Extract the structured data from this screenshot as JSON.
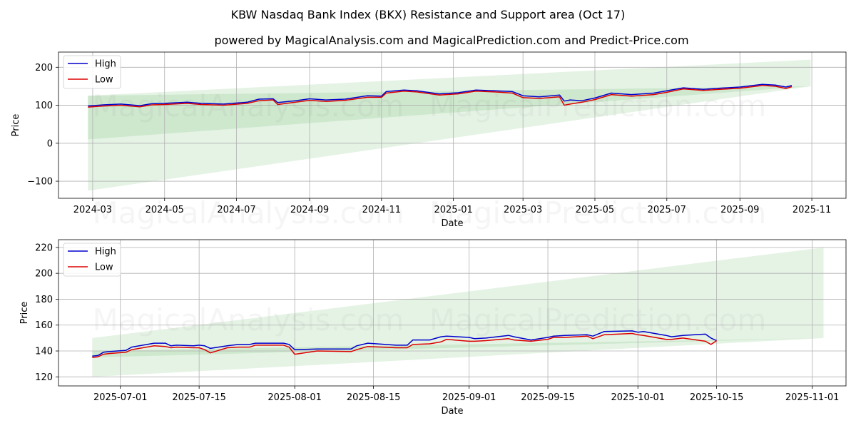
{
  "title": "KBW Nasdaq Bank Index (BKX) Resistance and Support area (Oct 17)",
  "subtitle": "powered by MagicalAnalysis.com and MagicalPrediction.com and Predict-Price.com",
  "watermarks": [
    "MagicalAnalysis.com",
    "MagicalPrediction.com"
  ],
  "colors": {
    "high": "#0000cc",
    "low": "#dd0000",
    "band": "#2ca02c",
    "grid": "#b0b0b0"
  },
  "chart_data": [
    {
      "type": "line",
      "title": "",
      "xlabel": "Date",
      "ylabel": "Price",
      "xlim": [
        "2024-02-01",
        "2025-11-30"
      ],
      "ylim": [
        -145,
        240
      ],
      "yticks": [
        -100,
        0,
        100,
        200
      ],
      "ytick_labels": [
        "−100",
        "0",
        "100",
        "200"
      ],
      "xticks": [
        "2024-03-01",
        "2024-05-01",
        "2024-07-01",
        "2024-09-01",
        "2024-11-01",
        "2025-01-01",
        "2025-03-01",
        "2025-05-01",
        "2025-07-01",
        "2025-09-01",
        "2025-11-01"
      ],
      "xtick_labels": [
        "2024-03",
        "2024-05",
        "2024-07",
        "2024-09",
        "2024-11",
        "2025-01",
        "2025-03",
        "2025-05",
        "2025-07",
        "2025-09",
        "2025-11"
      ],
      "legend": {
        "position": "top-left",
        "entries": [
          "High",
          "Low"
        ]
      },
      "bands": [
        {
          "x": [
            "2024-02-26",
            "2025-10-31"
          ],
          "upper": [
            125,
            220
          ],
          "lower": [
            10,
            150
          ]
        },
        {
          "x": [
            "2024-02-26",
            "2025-10-31"
          ],
          "upper": [
            125,
            150
          ],
          "lower": [
            -125,
            150
          ]
        }
      ],
      "series": [
        {
          "name": "High",
          "x": [
            "2024-02-26",
            "2024-03-10",
            "2024-03-25",
            "2024-04-10",
            "2024-04-20",
            "2024-05-01",
            "2024-05-20",
            "2024-06-01",
            "2024-06-20",
            "2024-07-10",
            "2024-07-20",
            "2024-08-01",
            "2024-08-05",
            "2024-08-20",
            "2024-09-01",
            "2024-09-15",
            "2024-10-01",
            "2024-10-20",
            "2024-11-01",
            "2024-11-05",
            "2024-11-20",
            "2024-12-01",
            "2024-12-20",
            "2025-01-05",
            "2025-01-20",
            "2025-02-05",
            "2025-02-20",
            "2025-03-01",
            "2025-03-15",
            "2025-04-01",
            "2025-04-05",
            "2025-04-10",
            "2025-04-20",
            "2025-05-01",
            "2025-05-15",
            "2025-06-01",
            "2025-06-20",
            "2025-07-01",
            "2025-07-15",
            "2025-08-01",
            "2025-08-15",
            "2025-09-01",
            "2025-09-20",
            "2025-10-01",
            "2025-10-10",
            "2025-10-15"
          ],
          "values": [
            98,
            101,
            103,
            99,
            104,
            105,
            108,
            105,
            103,
            108,
            116,
            117,
            107,
            112,
            117,
            114,
            116,
            125,
            124,
            136,
            140,
            138,
            130,
            133,
            140,
            138,
            136,
            125,
            122,
            127,
            111,
            114,
            112,
            119,
            132,
            128,
            132,
            138,
            146,
            142,
            145,
            148,
            155,
            153,
            148,
            152
          ]
        },
        {
          "name": "Low",
          "x": [
            "2024-02-26",
            "2024-03-10",
            "2024-03-25",
            "2024-04-10",
            "2024-04-20",
            "2024-05-01",
            "2024-05-20",
            "2024-06-01",
            "2024-06-20",
            "2024-07-10",
            "2024-07-20",
            "2024-08-01",
            "2024-08-05",
            "2024-08-20",
            "2024-09-01",
            "2024-09-15",
            "2024-10-01",
            "2024-10-20",
            "2024-11-01",
            "2024-11-05",
            "2024-11-20",
            "2024-12-01",
            "2024-12-20",
            "2025-01-05",
            "2025-01-20",
            "2025-02-05",
            "2025-02-20",
            "2025-03-01",
            "2025-03-15",
            "2025-04-01",
            "2025-04-05",
            "2025-04-10",
            "2025-04-20",
            "2025-05-01",
            "2025-05-15",
            "2025-06-01",
            "2025-06-20",
            "2025-07-01",
            "2025-07-15",
            "2025-08-01",
            "2025-08-15",
            "2025-09-01",
            "2025-09-20",
            "2025-10-01",
            "2025-10-10",
            "2025-10-15"
          ],
          "values": [
            95,
            98,
            100,
            96,
            101,
            102,
            105,
            102,
            100,
            105,
            112,
            114,
            102,
            108,
            113,
            110,
            113,
            121,
            121,
            132,
            137,
            135,
            127,
            130,
            137,
            135,
            132,
            120,
            118,
            122,
            100,
            103,
            108,
            115,
            128,
            124,
            128,
            134,
            143,
            139,
            142,
            145,
            152,
            150,
            144,
            149
          ]
        }
      ]
    },
    {
      "type": "line",
      "title": "",
      "xlabel": "Date",
      "ylabel": "Price",
      "xlim": [
        "2025-06-20",
        "2025-11-07"
      ],
      "ylim": [
        113,
        226
      ],
      "yticks": [
        120,
        140,
        160,
        180,
        200,
        220
      ],
      "ytick_labels": [
        "120",
        "140",
        "160",
        "180",
        "200",
        "220"
      ],
      "xticks": [
        "2025-07-01",
        "2025-07-15",
        "2025-08-01",
        "2025-08-15",
        "2025-09-01",
        "2025-09-15",
        "2025-10-01",
        "2025-10-15",
        "2025-11-01"
      ],
      "xtick_labels": [
        "2025-07-01",
        "2025-07-15",
        "2025-08-01",
        "2025-08-15",
        "2025-09-01",
        "2025-09-15",
        "2025-10-01",
        "2025-10-15",
        "2025-11-01"
      ],
      "legend": {
        "position": "top-left",
        "entries": [
          "High",
          "Low"
        ]
      },
      "bands": [
        {
          "x": [
            "2025-06-26",
            "2025-11-03"
          ],
          "upper": [
            150,
            220
          ],
          "lower": [
            135,
            150
          ]
        },
        {
          "x": [
            "2025-06-26",
            "2025-11-03"
          ],
          "upper": [
            140,
            150
          ],
          "lower": [
            120,
            150
          ]
        }
      ],
      "series": [
        {
          "name": "High",
          "x": [
            "2025-06-26",
            "2025-06-27",
            "2025-06-28",
            "2025-06-29",
            "2025-07-02",
            "2025-07-03",
            "2025-07-07",
            "2025-07-09",
            "2025-07-10",
            "2025-07-11",
            "2025-07-14",
            "2025-07-15",
            "2025-07-16",
            "2025-07-17",
            "2025-07-20",
            "2025-07-22",
            "2025-07-24",
            "2025-07-25",
            "2025-07-30",
            "2025-07-31",
            "2025-08-01",
            "2025-08-05",
            "2025-08-11",
            "2025-08-12",
            "2025-08-14",
            "2025-08-19",
            "2025-08-21",
            "2025-08-22",
            "2025-08-25",
            "2025-08-27",
            "2025-08-28",
            "2025-09-01",
            "2025-09-02",
            "2025-09-04",
            "2025-09-08",
            "2025-09-09",
            "2025-09-12",
            "2025-09-15",
            "2025-09-16",
            "2025-09-18",
            "2025-09-22",
            "2025-09-23",
            "2025-09-25",
            "2025-09-30",
            "2025-10-01",
            "2025-10-02",
            "2025-10-06",
            "2025-10-07",
            "2025-10-09",
            "2025-10-13",
            "2025-10-14",
            "2025-10-15"
          ],
          "values": [
            136,
            136.5,
            139,
            139.5,
            140.5,
            143,
            146,
            146,
            144,
            144.5,
            144,
            144.5,
            144,
            142,
            144,
            145,
            145,
            146,
            146,
            145,
            141,
            141.5,
            141.5,
            144,
            146,
            144.5,
            144.5,
            148.5,
            148.5,
            151,
            151.5,
            150.5,
            149.5,
            150,
            152,
            151,
            148.5,
            150.5,
            151.5,
            152,
            152.5,
            151.5,
            155,
            155.5,
            154.5,
            155,
            152,
            151,
            152,
            153,
            150,
            148
          ]
        },
        {
          "name": "Low",
          "x": [
            "2025-06-26",
            "2025-06-27",
            "2025-06-28",
            "2025-06-29",
            "2025-07-02",
            "2025-07-03",
            "2025-07-07",
            "2025-07-09",
            "2025-07-10",
            "2025-07-11",
            "2025-07-14",
            "2025-07-15",
            "2025-07-16",
            "2025-07-17",
            "2025-07-20",
            "2025-07-22",
            "2025-07-24",
            "2025-07-25",
            "2025-07-30",
            "2025-07-31",
            "2025-08-01",
            "2025-08-05",
            "2025-08-11",
            "2025-08-12",
            "2025-08-14",
            "2025-08-19",
            "2025-08-21",
            "2025-08-22",
            "2025-08-25",
            "2025-08-27",
            "2025-08-28",
            "2025-09-01",
            "2025-09-02",
            "2025-09-04",
            "2025-09-08",
            "2025-09-09",
            "2025-09-12",
            "2025-09-15",
            "2025-09-16",
            "2025-09-18",
            "2025-09-22",
            "2025-09-23",
            "2025-09-25",
            "2025-09-30",
            "2025-10-01",
            "2025-10-02",
            "2025-10-06",
            "2025-10-07",
            "2025-10-09",
            "2025-10-13",
            "2025-10-14",
            "2025-10-15"
          ],
          "values": [
            135,
            135.5,
            137.5,
            138,
            139,
            141,
            144,
            143.5,
            142.5,
            143,
            142.5,
            142.5,
            141,
            138.5,
            142.5,
            143,
            143,
            144.5,
            144.5,
            143,
            137.5,
            140,
            139.5,
            141,
            143.5,
            142.5,
            142.5,
            145,
            145.5,
            147,
            149,
            147.5,
            147.5,
            148,
            149.5,
            148.5,
            147.5,
            149,
            150.5,
            150.5,
            151.5,
            149.5,
            152.5,
            153.5,
            152.5,
            152,
            149,
            149,
            150,
            147.5,
            145,
            148
          ]
        }
      ]
    }
  ]
}
